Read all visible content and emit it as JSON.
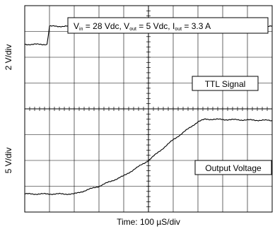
{
  "chart_data": {
    "type": "line",
    "title": "",
    "xlabel": "Time: 100 µS/div",
    "conditions": {
      "vin": "28 Vdc",
      "vout": "5 Vdc",
      "iout": "3.3 A"
    },
    "grid": true,
    "x_divisions": 10,
    "y_divisions": 8,
    "panels": [
      {
        "ylabel": "2 V/div",
        "series": [
          {
            "name": "TTL Signal",
            "x": [
              0,
              0.9,
              1.0,
              10
            ],
            "y": [
              6.5,
              6.5,
              7.2,
              7.2
            ]
          }
        ]
      },
      {
        "ylabel": "5 V/div",
        "series": [
          {
            "name": "Output Voltage",
            "x": [
              0,
              2.0,
              3.0,
              4.0,
              5.0,
              6.0,
              7.0,
              7.3,
              10
            ],
            "y": [
              0.7,
              0.7,
              1.0,
              1.4,
              2.0,
              2.8,
              3.5,
              3.6,
              3.55
            ]
          }
        ]
      }
    ]
  }
}
